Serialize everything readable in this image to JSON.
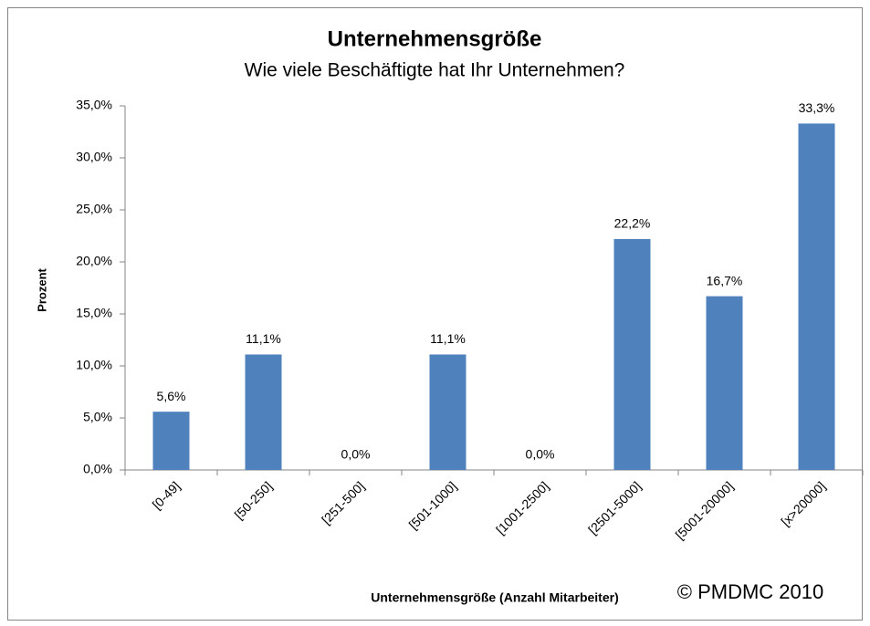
{
  "chart_data": {
    "type": "bar",
    "title": "Unternehmensgröße",
    "subtitle": "Wie viele Beschäftigte hat Ihr Unternehmen?",
    "x_label": "Unternehmensgröße (Anzahl Mitarbeiter)",
    "y_label": "Prozent",
    "annotation": "© PMDMC 2010",
    "categories": [
      "[0-49]",
      "[50-250]",
      "[251-500]",
      "[501-1000]",
      "[1001-2500]",
      "[2501-5000]",
      "[5001-20000]",
      "[x>20000]"
    ],
    "values": [
      5.6,
      11.1,
      0,
      11.1,
      0,
      22.2,
      16.7,
      33.3
    ],
    "value_labels": [
      "5,6%",
      "11,1%",
      "0,0%",
      "11,1%",
      "0,0%",
      "22,2%",
      "16,7%",
      "33,3%"
    ],
    "color": "#4f81bd",
    "ylim": [
      0,
      35
    ],
    "yticks": [
      {
        "value": 0,
        "label": "0,0%"
      },
      {
        "value": 5,
        "label": "5,0%"
      },
      {
        "value": 10,
        "label": "10,0%"
      },
      {
        "value": 15,
        "label": "15,0%"
      },
      {
        "value": 20,
        "label": "20,0%"
      },
      {
        "value": 25,
        "label": "25,0%"
      },
      {
        "value": 30,
        "label": "30,0%"
      },
      {
        "value": 35,
        "label": "35,0%"
      }
    ],
    "grid": false
  }
}
